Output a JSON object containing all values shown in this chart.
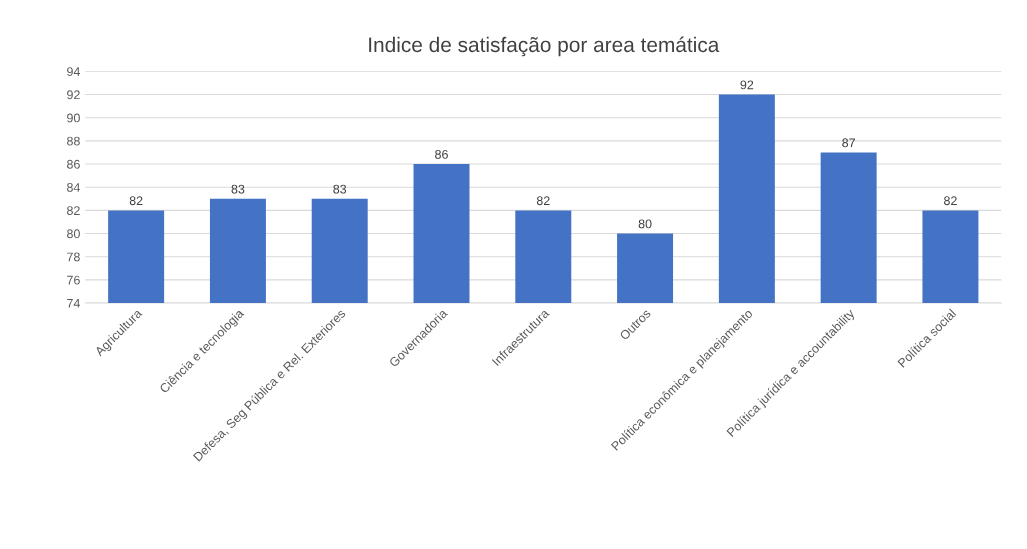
{
  "chart_data": {
    "type": "bar",
    "title": "Indice de satisfação por area temática",
    "categories": [
      "Agricultura",
      "Ciência e tecnologia",
      "Defesa, Seg Pública e Rel. Exteriores",
      "Governadoria",
      "Infraestrutura",
      "Outros",
      "Política econômica e planejamento",
      "Política jurídica e accountability",
      "Política social"
    ],
    "values": [
      82,
      83,
      83,
      86,
      82,
      80,
      92,
      87,
      82
    ],
    "color": "#4472c4",
    "ylim": [
      74,
      94
    ],
    "yticks": [
      74,
      76,
      78,
      80,
      82,
      84,
      86,
      88,
      90,
      92,
      94
    ],
    "grid": "y",
    "data_labels": true
  }
}
